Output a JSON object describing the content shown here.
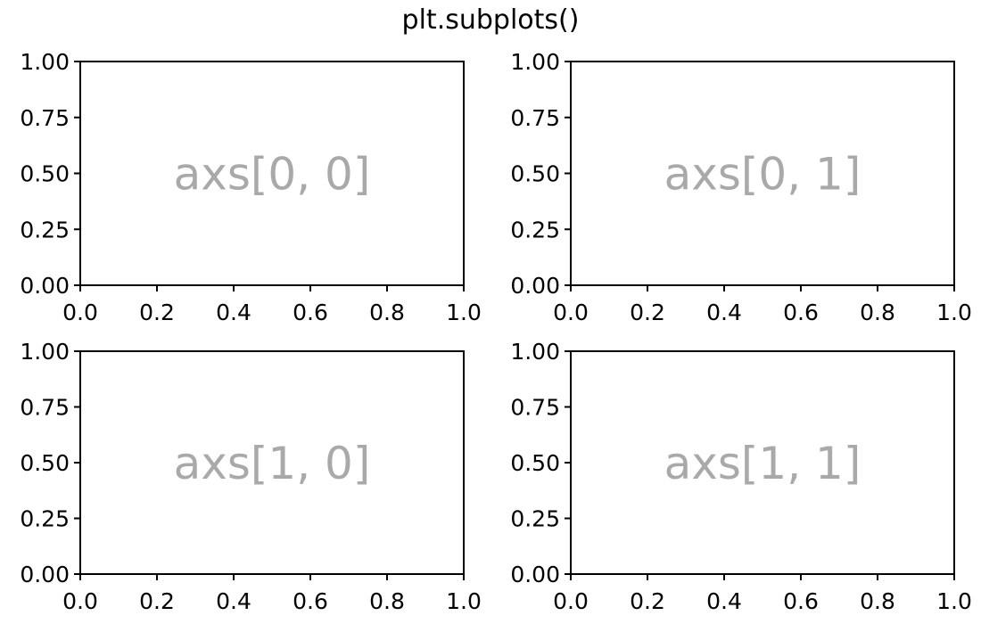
{
  "figure": {
    "suptitle": "plt.subplots()"
  },
  "chart_data": [
    {
      "type": "scatter",
      "name": "axs[0, 0]",
      "annotation": "axs[0, 0]",
      "annotation_color": "#a9a9a9",
      "x": [],
      "y": [],
      "xlim": [
        0.0,
        1.0
      ],
      "ylim": [
        0.0,
        1.0
      ],
      "xticks": [
        "0.0",
        "0.2",
        "0.4",
        "0.6",
        "0.8",
        "1.0"
      ],
      "yticks": [
        "0.00",
        "0.25",
        "0.50",
        "0.75",
        "1.00"
      ],
      "grid": false
    },
    {
      "type": "scatter",
      "name": "axs[0, 1]",
      "annotation": "axs[0, 1]",
      "annotation_color": "#a9a9a9",
      "x": [],
      "y": [],
      "xlim": [
        0.0,
        1.0
      ],
      "ylim": [
        0.0,
        1.0
      ],
      "xticks": [
        "0.0",
        "0.2",
        "0.4",
        "0.6",
        "0.8",
        "1.0"
      ],
      "yticks": [
        "0.00",
        "0.25",
        "0.50",
        "0.75",
        "1.00"
      ],
      "grid": false
    },
    {
      "type": "scatter",
      "name": "axs[1, 0]",
      "annotation": "axs[1, 0]",
      "annotation_color": "#a9a9a9",
      "x": [],
      "y": [],
      "xlim": [
        0.0,
        1.0
      ],
      "ylim": [
        0.0,
        1.0
      ],
      "xticks": [
        "0.0",
        "0.2",
        "0.4",
        "0.6",
        "0.8",
        "1.0"
      ],
      "yticks": [
        "0.00",
        "0.25",
        "0.50",
        "0.75",
        "1.00"
      ],
      "grid": false
    },
    {
      "type": "scatter",
      "name": "axs[1, 1]",
      "annotation": "axs[1, 1]",
      "annotation_color": "#a9a9a9",
      "x": [],
      "y": [],
      "xlim": [
        0.0,
        1.0
      ],
      "ylim": [
        0.0,
        1.0
      ],
      "xticks": [
        "0.0",
        "0.2",
        "0.4",
        "0.6",
        "0.8",
        "1.0"
      ],
      "yticks": [
        "0.00",
        "0.25",
        "0.50",
        "0.75",
        "1.00"
      ],
      "grid": false
    }
  ]
}
